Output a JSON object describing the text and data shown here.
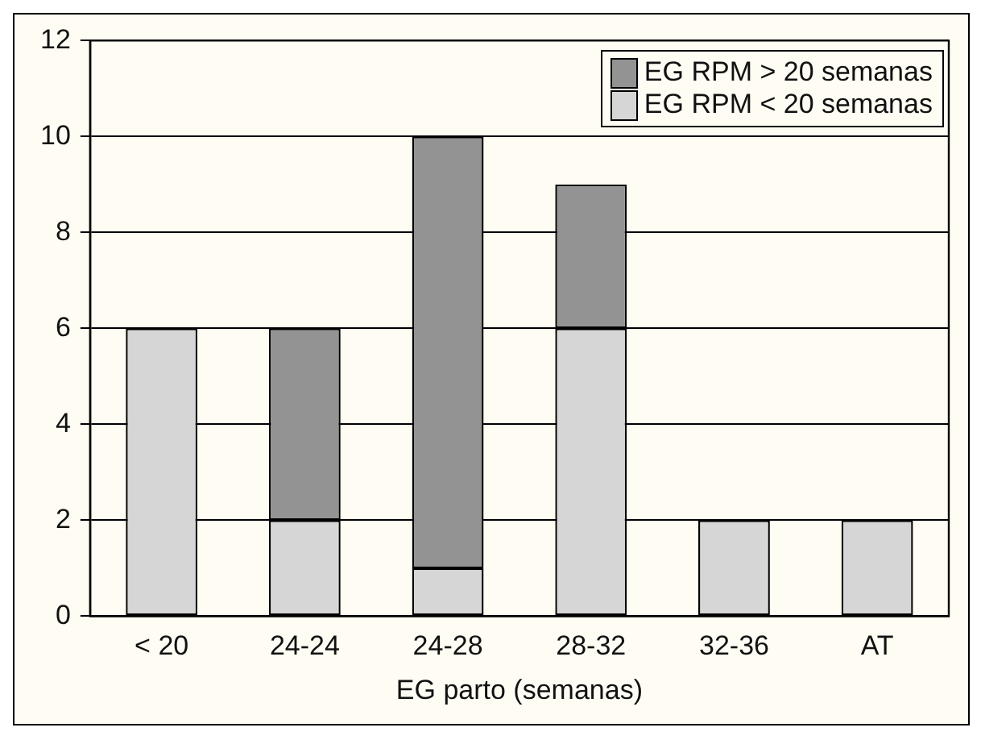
{
  "chart_data": {
    "type": "bar",
    "stacked": true,
    "xlabel": "EG parto (semanas)",
    "categories": [
      "< 20",
      "24-24",
      "24-28",
      "28-32",
      "32-36",
      "AT"
    ],
    "series": [
      {
        "name": "EG RPM < 20 semanas",
        "color": "#d6d6d6",
        "values": [
          6,
          2,
          1,
          6,
          2,
          2
        ]
      },
      {
        "name": "EG RPM > 20 semanas",
        "color": "#939393",
        "values": [
          0,
          4,
          9,
          3,
          0,
          0
        ]
      }
    ],
    "ylim": [
      0,
      12
    ],
    "yticks": [
      0,
      2,
      4,
      6,
      8,
      10,
      12
    ],
    "grid": "y",
    "legend": "top right"
  }
}
